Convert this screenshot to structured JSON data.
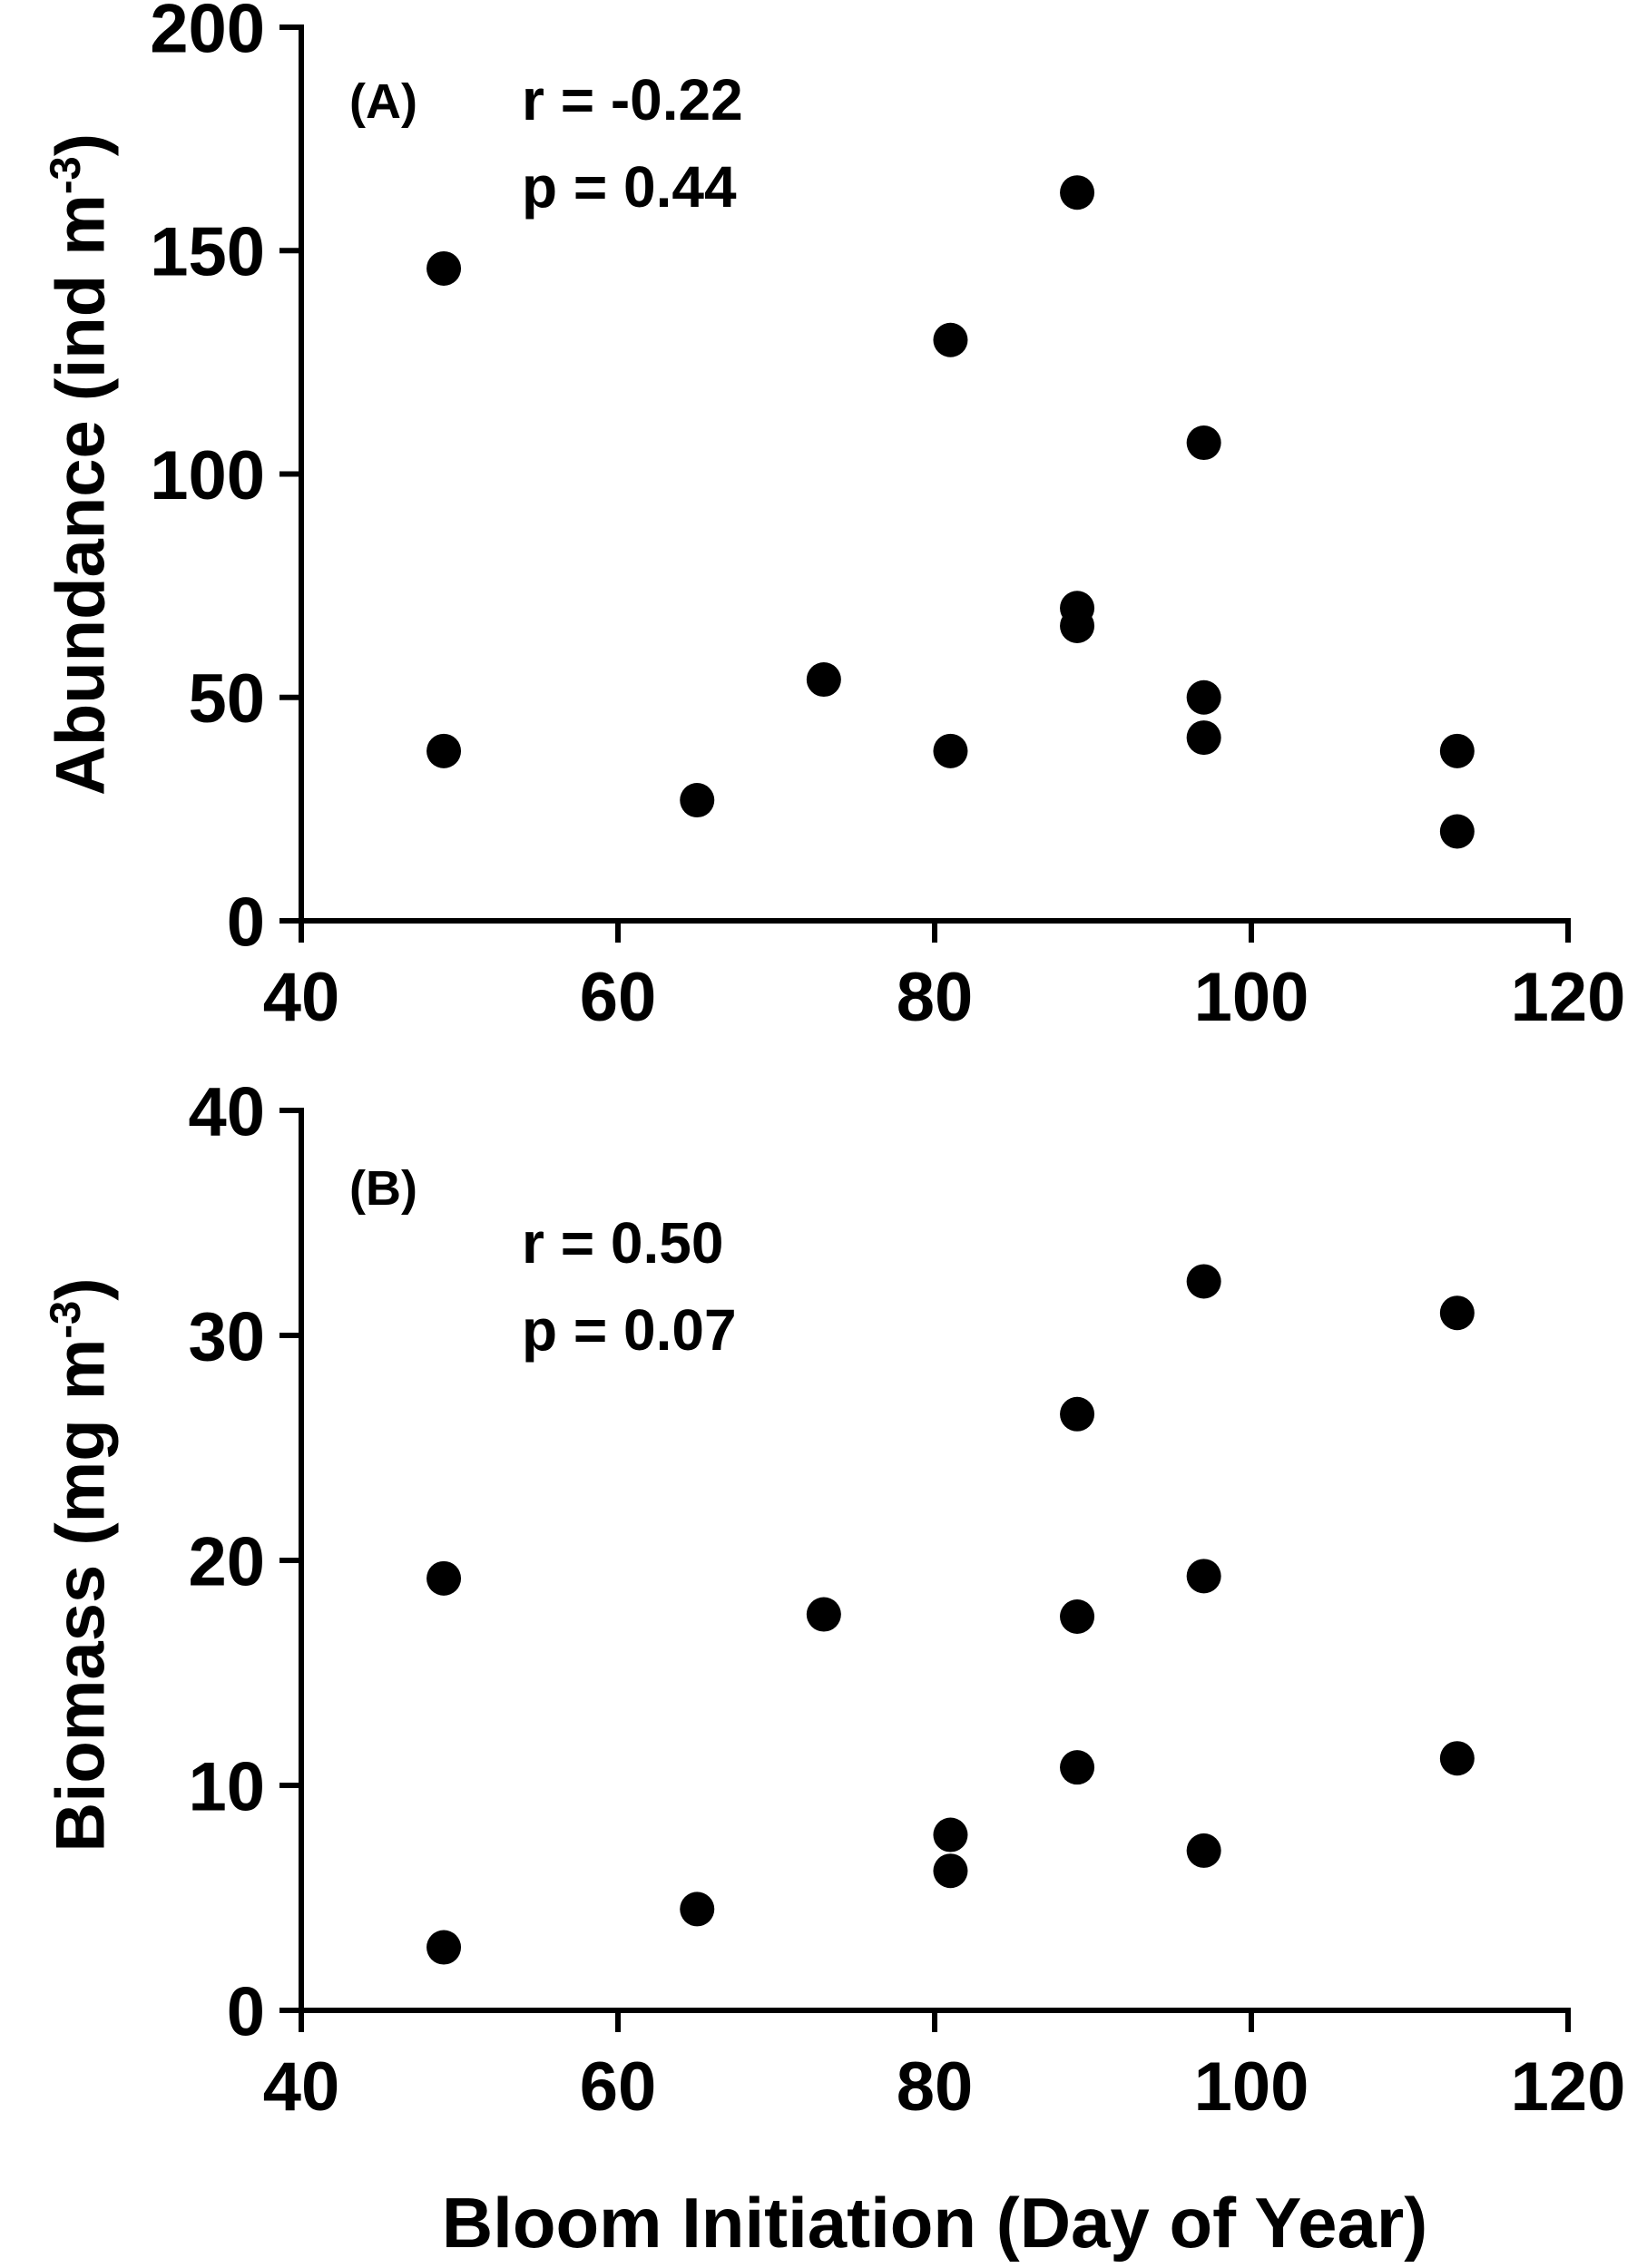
{
  "figure": {
    "xlabel": "Bloom Initiation (Day of Year)"
  },
  "chart_data": [
    {
      "type": "scatter",
      "panel_label": "(A)",
      "r_text": "r = -0.22",
      "p_text": "p = 0.44",
      "ylabel": {
        "pre": "Abundance (ind m",
        "sup": "-3",
        "post": ")"
      },
      "xlabel": "Bloom Initiation (Day of Year)",
      "xlim": [
        40,
        120
      ],
      "ylim": [
        0,
        200
      ],
      "xticks": [
        40,
        60,
        80,
        100,
        120
      ],
      "yticks": [
        0,
        50,
        100,
        150,
        200
      ],
      "marker_color": "#000000",
      "points": [
        [
          49,
          146
        ],
        [
          49,
          38
        ],
        [
          65,
          27
        ],
        [
          73,
          54
        ],
        [
          81,
          130
        ],
        [
          81,
          38
        ],
        [
          89,
          163
        ],
        [
          89,
          70
        ],
        [
          89,
          66
        ],
        [
          97,
          107
        ],
        [
          97,
          50
        ],
        [
          97,
          41
        ],
        [
          113,
          38
        ],
        [
          113,
          20
        ]
      ]
    },
    {
      "type": "scatter",
      "panel_label": "(B)",
      "r_text": "r = 0.50",
      "p_text": "p = 0.07",
      "ylabel": {
        "pre": "Biomass (mg m",
        "sup": "-3",
        "post": ")"
      },
      "xlabel": "Bloom Initiation (Day of Year)",
      "xlim": [
        40,
        120
      ],
      "ylim": [
        0,
        40
      ],
      "xticks": [
        40,
        60,
        80,
        100,
        120
      ],
      "yticks": [
        0,
        10,
        20,
        30,
        40
      ],
      "marker_color": "#000000",
      "points": [
        [
          49,
          19.2
        ],
        [
          49,
          2.8
        ],
        [
          65,
          4.5
        ],
        [
          73,
          17.6
        ],
        [
          81,
          7.8
        ],
        [
          81,
          6.2
        ],
        [
          89,
          26.5
        ],
        [
          89,
          17.5
        ],
        [
          89,
          10.8
        ],
        [
          97,
          32.4
        ],
        [
          97,
          19.3
        ],
        [
          97,
          7.1
        ],
        [
          113,
          31.0
        ],
        [
          113,
          11.2
        ]
      ]
    }
  ]
}
